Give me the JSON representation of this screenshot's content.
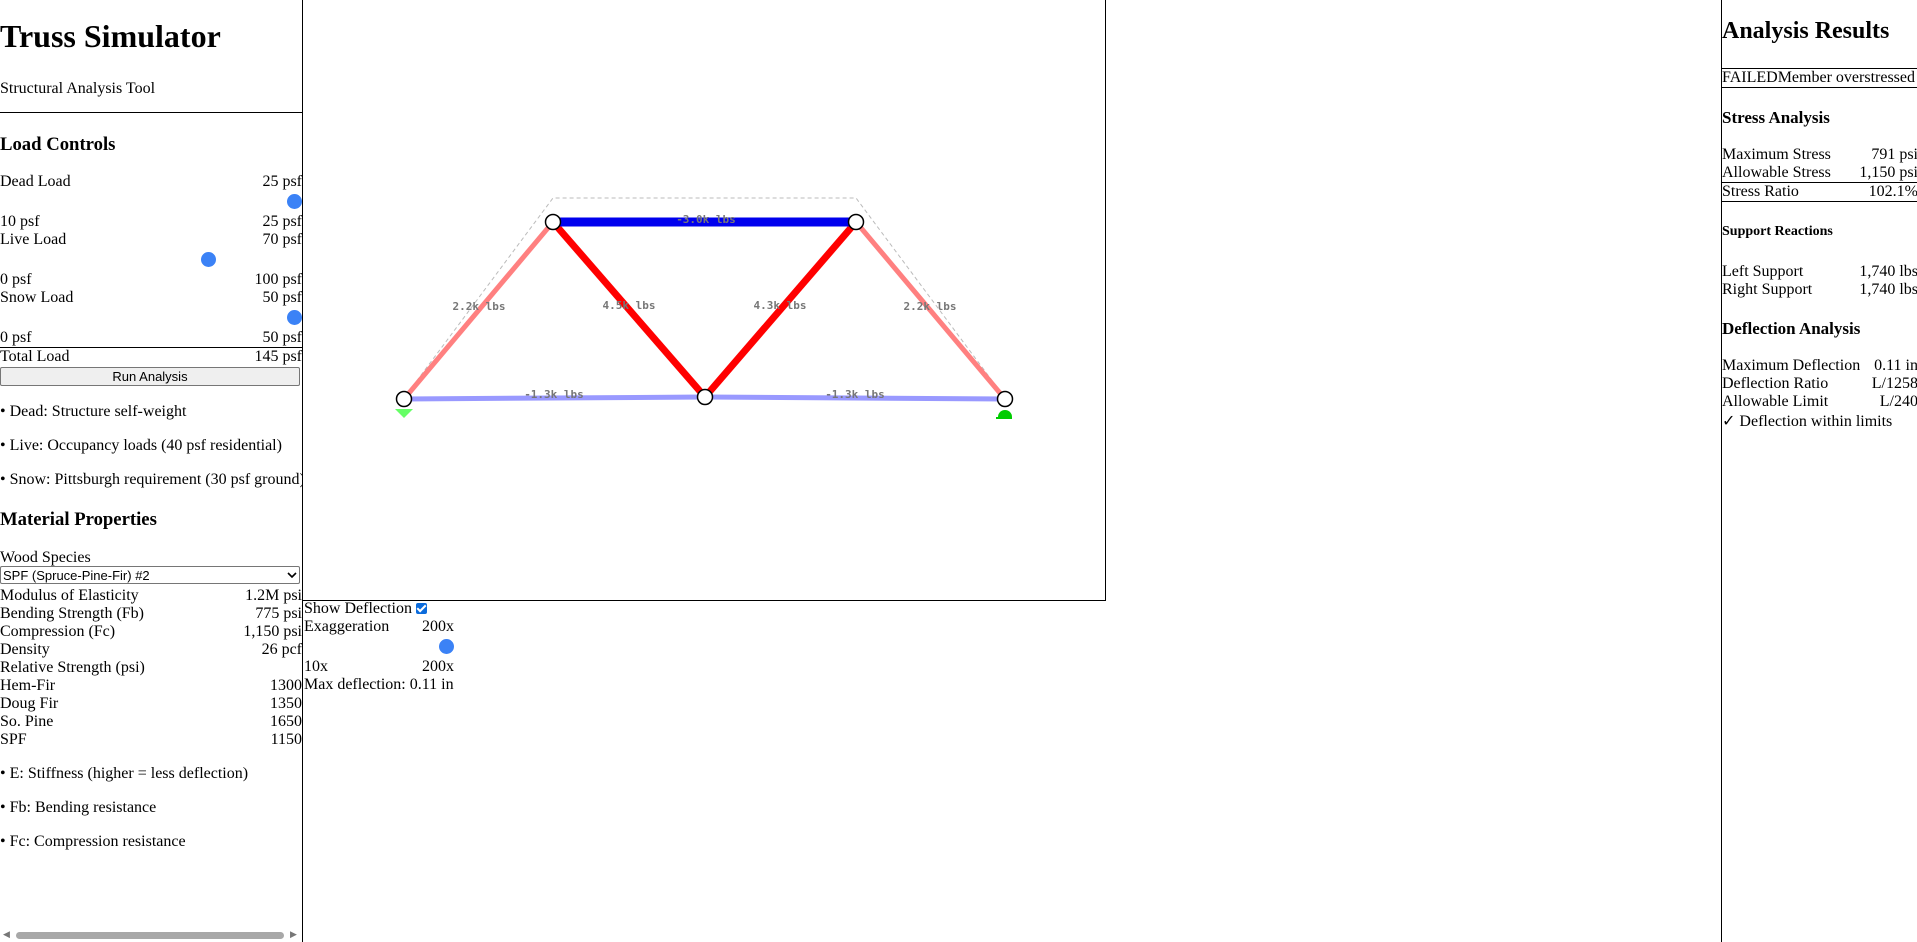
{
  "app": {
    "title": "Truss Simulator",
    "subtitle": "Structural Analysis Tool"
  },
  "load_controls": {
    "heading": "Load Controls",
    "dead": {
      "label": "Dead Load",
      "value": "25 psf",
      "min": "10 psf",
      "max": "25 psf",
      "level": 1.0
    },
    "live": {
      "label": "Live Load",
      "value": "70 psf",
      "min": "0 psf",
      "max": "100 psf",
      "level": 0.7
    },
    "snow": {
      "label": "Snow Load",
      "value": "50 psf",
      "min": "0 psf",
      "max": "50 psf",
      "level": 1.0
    },
    "total": {
      "label": "Total Load",
      "value": "145 psf"
    },
    "run_button": "Run Analysis",
    "notes": [
      "• Dead: Structure self-weight",
      "• Live: Occupancy loads (40 psf residential)",
      "• Snow: Pittsburgh requirement (30 psf ground)"
    ]
  },
  "material": {
    "heading": "Material Properties",
    "species_label": "Wood Species",
    "species_selected": "SPF (Spruce-Pine-Fir) #2",
    "props": [
      {
        "label": "Modulus of Elasticity",
        "value": "1.2M psi"
      },
      {
        "label": "Bending Strength (Fb)",
        "value": "775 psi"
      },
      {
        "label": "Compression (Fc)",
        "value": "1,150 psi"
      },
      {
        "label": "Density",
        "value": "26 pcf"
      }
    ],
    "relative_label": "Relative Strength (psi)",
    "relative": [
      {
        "label": "Hem-Fir",
        "value": "1300"
      },
      {
        "label": "Doug Fir",
        "value": "1350"
      },
      {
        "label": "So. Pine",
        "value": "1650"
      },
      {
        "label": "SPF",
        "value": "1150"
      }
    ],
    "notes": [
      "• E: Stiffness (higher = less deflection)",
      "• Fb: Bending resistance",
      "• Fc: Compression resistance"
    ]
  },
  "truss": {
    "member_labels": [
      "-3.0k lbs",
      "2.2k lbs",
      "4.5k lbs",
      "4.3k lbs",
      "2.2k lbs",
      "-1.3k lbs",
      "-1.3k lbs"
    ],
    "colors": {
      "compression": "#0000ee",
      "tension": "#ff0000",
      "tension_light": "#ff8080",
      "compression_light": "#9999ff",
      "pin_support": "#66ff66",
      "roller_support": "#00cc00"
    }
  },
  "deflection_controls": {
    "show_label": "Show Deflection",
    "show_checked": true,
    "exaggeration_label": "Exaggeration",
    "exaggeration_value": "200x",
    "min": "10x",
    "max": "200x",
    "level": 1.0,
    "max_deflection_text": "Max deflection: 0.11 in"
  },
  "results": {
    "title": "Analysis Results",
    "status": "FAILED",
    "status_message": "Member overstressed",
    "stress_heading": "Stress Analysis",
    "stress": [
      {
        "label": "Maximum Stress",
        "value": "791 psi"
      },
      {
        "label": "Allowable Stress",
        "value": "1,150 psi"
      },
      {
        "label": "Stress Ratio",
        "value": "102.1%"
      }
    ],
    "support_heading": "Support Reactions",
    "support": [
      {
        "label": "Left Support",
        "value": "1,740 lbs"
      },
      {
        "label": "Right Support",
        "value": "1,740 lbs"
      }
    ],
    "deflection_heading": "Deflection Analysis",
    "deflection": [
      {
        "label": "Maximum Deflection",
        "value": "0.11 in"
      },
      {
        "label": "Deflection Ratio",
        "value": "L/1258"
      },
      {
        "label": "Allowable Limit",
        "value": "L/240"
      }
    ],
    "deflection_status": "✓ Deflection within limits"
  }
}
